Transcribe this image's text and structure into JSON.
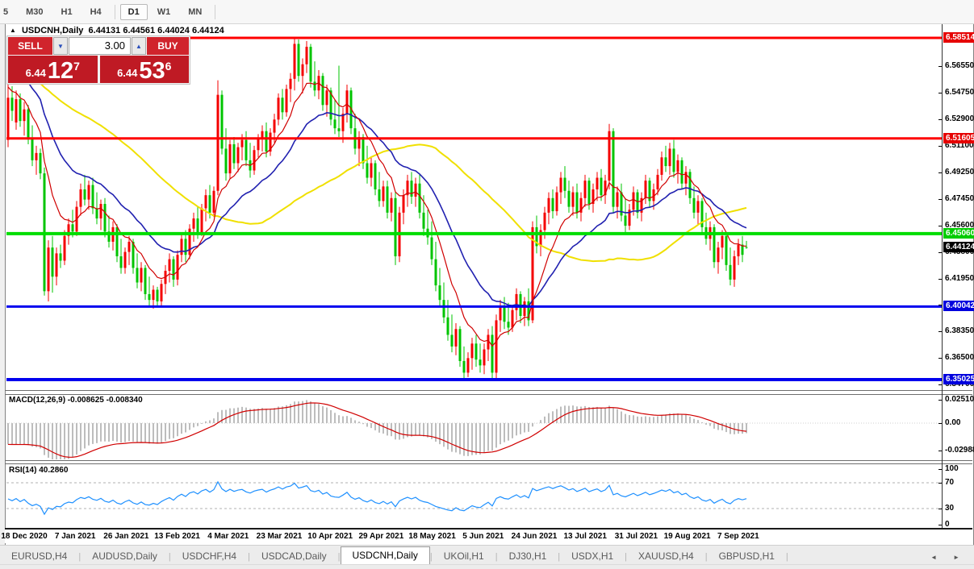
{
  "toolbar": {
    "timeframes": [
      "5",
      "M30",
      "H1",
      "H4",
      "D1",
      "W1",
      "MN"
    ],
    "active": "D1"
  },
  "chart": {
    "title": {
      "symbol": "USDCNH,Daily",
      "ohlc": "6.44131 6.44561 6.44024 6.44124"
    },
    "trade_panel": {
      "sell_label": "SELL",
      "buy_label": "BUY",
      "volume": "3.00",
      "bid": {
        "prefix": "6.44",
        "big": "12",
        "sup": "7"
      },
      "ask": {
        "prefix": "6.44",
        "big": "53",
        "sup": "6"
      }
    },
    "colors": {
      "bull": "#f40000",
      "bear": "#00c400",
      "level_red": "#ff0000",
      "level_green": "#00dd00",
      "level_blue": "#0000ee",
      "ma_fast": "#d00000",
      "ma_mid": "#2121b0",
      "ma_slow": "#f0e000",
      "macd_hist": "#bdbdbd",
      "macd_signal": "#d00000",
      "rsi_line": "#1e90ff"
    },
    "levels": [
      {
        "label": "6.58514",
        "value": 6.58514,
        "line": "#ff0000",
        "width": 3,
        "badge_bg": "#e60000"
      },
      {
        "label": "6.51605",
        "value": 6.51605,
        "line": "#ff0000",
        "width": 3,
        "badge_bg": "#e60000"
      },
      {
        "label": "6.45060",
        "value": 6.4506,
        "line": "#00dd00",
        "width": 4,
        "badge_bg": "#00cc00"
      },
      {
        "label": "6.40042",
        "value": 6.40042,
        "line": "#0000ee",
        "width": 3,
        "badge_bg": "#0000dd"
      },
      {
        "label": "6.35025",
        "value": 6.35025,
        "line": "#0000ee",
        "width": 4,
        "badge_bg": "#0000dd"
      }
    ],
    "current_price_badge": {
      "label": "6.44124",
      "value": 6.44124,
      "badge_bg": "#000000"
    },
    "price_ticks": [
      "6.56550",
      "6.54750",
      "6.52900",
      "6.51100",
      "6.49250",
      "6.47450",
      "6.45600",
      "6.43800",
      "6.41950",
      "6.40150",
      "6.38350",
      "6.36500",
      "6.34700"
    ]
  },
  "macd_panel": {
    "label": "MACD(12,26,9) -0.008625 -0.008340",
    "ticks": [
      "0.025108",
      "0.00",
      "-0.02988"
    ]
  },
  "rsi_panel": {
    "label": "RSI(14) 40.2860",
    "ticks": [
      "100",
      "70",
      "30",
      "0"
    ]
  },
  "date_axis": {
    "labels": [
      "18 Dec 2020",
      "7 Jan 2021",
      "26 Jan 2021",
      "13 Feb 2021",
      "4 Mar 2021",
      "23 Mar 2021",
      "10 Apr 2021",
      "29 Apr 2021",
      "18 May 2021",
      "5 Jun 2021",
      "24 Jun 2021",
      "13 Jul 2021",
      "31 Jul 2021",
      "19 Aug 2021",
      "7 Sep 2021"
    ]
  },
  "tabs": {
    "items": [
      "EURUSD,H4",
      "AUDUSD,Daily",
      "USDCHF,H4",
      "USDCAD,Daily",
      "USDCNH,Daily",
      "UKOil,H1",
      "DJ30,H1",
      "USDX,H1",
      "XAUUSD,H4",
      "GBPUSD,H1"
    ],
    "active": "USDCNH,Daily",
    "scroll_left_icon": "◄",
    "scroll_right_icon": "►"
  },
  "chart_data": {
    "type": "candlestick",
    "symbol": "USDCNH",
    "period": "Daily",
    "note": "OHLC per bar, red=up green=down (CN convention)",
    "candles": [
      [
        6.515,
        6.554,
        6.51,
        6.544
      ],
      [
        6.544,
        6.552,
        6.528,
        6.535
      ],
      [
        6.527,
        6.549,
        6.522,
        6.543
      ],
      [
        6.543,
        6.547,
        6.524,
        6.528
      ],
      [
        6.528,
        6.541,
        6.518,
        6.536
      ],
      [
        6.536,
        6.539,
        6.512,
        6.516
      ],
      [
        6.516,
        6.525,
        6.497,
        6.501
      ],
      [
        6.501,
        6.511,
        6.491,
        6.506
      ],
      [
        6.506,
        6.509,
        6.488,
        6.492
      ],
      [
        6.492,
        6.496,
        6.408,
        6.411
      ],
      [
        6.411,
        6.446,
        6.404,
        6.441
      ],
      [
        6.441,
        6.449,
        6.41,
        6.421
      ],
      [
        6.421,
        6.441,
        6.415,
        6.437
      ],
      [
        6.437,
        6.443,
        6.427,
        6.432
      ],
      [
        6.432,
        6.453,
        6.429,
        6.449
      ],
      [
        6.449,
        6.461,
        6.443,
        6.457
      ],
      [
        6.457,
        6.467,
        6.448,
        6.452
      ],
      [
        6.452,
        6.473,
        6.449,
        6.469
      ],
      [
        6.469,
        6.485,
        6.463,
        6.481
      ],
      [
        6.481,
        6.491,
        6.47,
        6.474
      ],
      [
        6.474,
        6.487,
        6.467,
        6.484
      ],
      [
        6.484,
        6.489,
        6.464,
        6.468
      ],
      [
        6.468,
        6.479,
        6.457,
        6.461
      ],
      [
        6.461,
        6.474,
        6.453,
        6.471
      ],
      [
        6.471,
        6.475,
        6.448,
        6.452
      ],
      [
        6.452,
        6.463,
        6.441,
        6.445
      ],
      [
        6.445,
        6.459,
        6.439,
        6.455
      ],
      [
        6.455,
        6.457,
        6.431,
        6.435
      ],
      [
        6.435,
        6.447,
        6.423,
        6.427
      ],
      [
        6.427,
        6.441,
        6.423,
        6.438
      ],
      [
        6.438,
        6.449,
        6.429,
        6.445
      ],
      [
        6.445,
        6.447,
        6.423,
        6.427
      ],
      [
        6.427,
        6.437,
        6.413,
        6.417
      ],
      [
        6.417,
        6.431,
        6.411,
        6.427
      ],
      [
        6.427,
        6.429,
        6.405,
        6.409
      ],
      [
        6.409,
        6.421,
        6.401,
        6.405
      ],
      [
        6.405,
        6.415,
        6.399,
        6.412
      ],
      [
        6.412,
        6.414,
        6.4,
        6.404
      ],
      [
        6.404,
        6.419,
        6.401,
        6.416
      ],
      [
        6.416,
        6.429,
        6.409,
        6.425
      ],
      [
        6.425,
        6.437,
        6.417,
        6.433
      ],
      [
        6.433,
        6.435,
        6.414,
        6.419
      ],
      [
        6.419,
        6.439,
        6.415,
        6.436
      ],
      [
        6.436,
        6.451,
        6.431,
        6.447
      ],
      [
        6.447,
        6.453,
        6.431,
        6.436
      ],
      [
        6.436,
        6.457,
        6.433,
        6.454
      ],
      [
        6.454,
        6.465,
        6.445,
        6.461
      ],
      [
        6.461,
        6.469,
        6.447,
        6.451
      ],
      [
        6.451,
        6.471,
        6.449,
        6.468
      ],
      [
        6.468,
        6.481,
        6.459,
        6.477
      ],
      [
        6.477,
        6.484,
        6.461,
        6.465
      ],
      [
        6.465,
        6.483,
        6.462,
        6.48
      ],
      [
        6.48,
        6.556,
        6.477,
        6.546
      ],
      [
        6.546,
        6.549,
        6.505,
        6.509
      ],
      [
        6.509,
        6.523,
        6.487,
        6.492
      ],
      [
        6.492,
        6.515,
        6.488,
        6.512
      ],
      [
        6.512,
        6.517,
        6.495,
        6.499
      ],
      [
        6.499,
        6.513,
        6.493,
        6.51
      ],
      [
        6.51,
        6.519,
        6.501,
        6.515
      ],
      [
        6.515,
        6.521,
        6.497,
        6.501
      ],
      [
        6.501,
        6.513,
        6.489,
        6.494
      ],
      [
        6.494,
        6.511,
        6.491,
        6.508
      ],
      [
        6.508,
        6.519,
        6.503,
        6.516
      ],
      [
        6.516,
        6.525,
        6.507,
        6.521
      ],
      [
        6.521,
        6.527,
        6.503,
        6.507
      ],
      [
        6.507,
        6.523,
        6.504,
        6.52
      ],
      [
        6.52,
        6.533,
        6.513,
        6.529
      ],
      [
        6.529,
        6.547,
        6.525,
        6.544
      ],
      [
        6.544,
        6.55,
        6.529,
        6.534
      ],
      [
        6.534,
        6.553,
        6.531,
        6.55
      ],
      [
        6.55,
        6.561,
        6.541,
        6.557
      ],
      [
        6.557,
        6.585,
        6.549,
        6.581
      ],
      [
        6.581,
        6.584,
        6.555,
        6.559
      ],
      [
        6.559,
        6.571,
        6.547,
        6.567
      ],
      [
        6.567,
        6.583,
        6.561,
        6.579
      ],
      [
        6.579,
        6.581,
        6.551,
        6.555
      ],
      [
        6.555,
        6.569,
        6.545,
        6.549
      ],
      [
        6.549,
        6.563,
        6.543,
        6.559
      ],
      [
        6.559,
        6.561,
        6.535,
        6.539
      ],
      [
        6.539,
        6.553,
        6.531,
        6.549
      ],
      [
        6.549,
        6.551,
        6.525,
        6.529
      ],
      [
        6.529,
        6.543,
        6.519,
        6.523
      ],
      [
        6.523,
        6.566,
        6.517,
        6.521
      ],
      [
        6.521,
        6.537,
        6.513,
        6.533
      ],
      [
        6.533,
        6.553,
        6.527,
        6.549
      ],
      [
        6.549,
        6.551,
        6.519,
        6.523
      ],
      [
        6.523,
        6.533,
        6.505,
        6.509
      ],
      [
        6.509,
        6.521,
        6.497,
        6.517
      ],
      [
        6.517,
        6.519,
        6.495,
        6.499
      ],
      [
        6.499,
        6.511,
        6.485,
        6.489
      ],
      [
        6.489,
        6.503,
        6.483,
        6.499
      ],
      [
        6.499,
        6.501,
        6.477,
        6.481
      ],
      [
        6.481,
        6.493,
        6.469,
        6.473
      ],
      [
        6.473,
        6.487,
        6.469,
        6.483
      ],
      [
        6.483,
        6.487,
        6.461,
        6.465
      ],
      [
        6.465,
        6.479,
        6.459,
        6.475
      ],
      [
        6.475,
        6.479,
        6.429,
        6.435
      ],
      [
        6.435,
        6.469,
        6.431,
        6.465
      ],
      [
        6.465,
        6.481,
        6.457,
        6.477
      ],
      [
        6.477,
        6.491,
        6.469,
        6.487
      ],
      [
        6.487,
        6.493,
        6.471,
        6.476
      ],
      [
        6.476,
        6.489,
        6.469,
        6.485
      ],
      [
        6.485,
        6.491,
        6.461,
        6.465
      ],
      [
        6.465,
        6.477,
        6.449,
        6.454
      ],
      [
        6.454,
        6.467,
        6.443,
        6.448
      ],
      [
        6.448,
        6.459,
        6.429,
        6.433
      ],
      [
        6.433,
        6.445,
        6.411,
        6.415
      ],
      [
        6.415,
        6.427,
        6.401,
        6.405
      ],
      [
        6.405,
        6.417,
        6.389,
        6.393
      ],
      [
        6.393,
        6.405,
        6.377,
        6.381
      ],
      [
        6.381,
        6.395,
        6.369,
        6.373
      ],
      [
        6.373,
        6.389,
        6.367,
        6.385
      ],
      [
        6.385,
        6.387,
        6.359,
        6.363
      ],
      [
        6.363,
        6.373,
        6.351,
        6.355
      ],
      [
        6.355,
        6.369,
        6.352,
        6.365
      ],
      [
        6.365,
        6.379,
        6.357,
        6.375
      ],
      [
        6.375,
        6.381,
        6.359,
        6.364
      ],
      [
        6.364,
        6.375,
        6.355,
        6.36
      ],
      [
        6.36,
        6.375,
        6.354,
        6.371
      ],
      [
        6.371,
        6.385,
        6.363,
        6.381
      ],
      [
        6.381,
        6.387,
        6.35,
        6.355
      ],
      [
        6.355,
        6.395,
        6.351,
        6.391
      ],
      [
        6.391,
        6.405,
        6.383,
        6.401
      ],
      [
        6.401,
        6.407,
        6.385,
        6.39
      ],
      [
        6.39,
        6.403,
        6.381,
        6.386
      ],
      [
        6.386,
        6.401,
        6.383,
        6.398
      ],
      [
        6.398,
        6.413,
        6.391,
        6.409
      ],
      [
        6.409,
        6.411,
        6.389,
        6.394
      ],
      [
        6.394,
        6.407,
        6.387,
        6.404
      ],
      [
        6.404,
        6.413,
        6.387,
        6.391
      ],
      [
        6.391,
        6.459,
        6.389,
        6.455
      ],
      [
        6.455,
        6.463,
        6.437,
        6.442
      ],
      [
        6.442,
        6.457,
        6.435,
        6.453
      ],
      [
        6.453,
        6.469,
        6.447,
        6.465
      ],
      [
        6.465,
        6.479,
        6.457,
        6.475
      ],
      [
        6.475,
        6.481,
        6.461,
        6.466
      ],
      [
        6.466,
        6.483,
        6.463,
        6.479
      ],
      [
        6.479,
        6.493,
        6.471,
        6.489
      ],
      [
        6.489,
        6.497,
        6.475,
        6.48
      ],
      [
        6.48,
        6.487,
        6.465,
        6.469
      ],
      [
        6.469,
        6.483,
        6.463,
        6.479
      ],
      [
        6.479,
        6.485,
        6.461,
        6.465
      ],
      [
        6.465,
        6.479,
        6.459,
        6.475
      ],
      [
        6.475,
        6.491,
        6.469,
        6.487
      ],
      [
        6.487,
        6.489,
        6.467,
        6.471
      ],
      [
        6.471,
        6.485,
        6.465,
        6.481
      ],
      [
        6.481,
        6.493,
        6.473,
        6.489
      ],
      [
        6.489,
        6.495,
        6.473,
        6.477
      ],
      [
        6.477,
        6.491,
        6.471,
        6.487
      ],
      [
        6.487,
        6.526,
        6.481,
        6.521
      ],
      [
        6.521,
        6.523,
        6.465,
        6.469
      ],
      [
        6.469,
        6.483,
        6.461,
        6.479
      ],
      [
        6.479,
        6.485,
        6.459,
        6.463
      ],
      [
        6.463,
        6.475,
        6.451,
        6.456
      ],
      [
        6.456,
        6.471,
        6.453,
        6.467
      ],
      [
        6.467,
        6.483,
        6.463,
        6.479
      ],
      [
        6.479,
        6.481,
        6.461,
        6.465
      ],
      [
        6.465,
        6.479,
        6.459,
        6.475
      ],
      [
        6.475,
        6.491,
        6.471,
        6.487
      ],
      [
        6.487,
        6.489,
        6.469,
        6.473
      ],
      [
        6.473,
        6.485,
        6.467,
        6.481
      ],
      [
        6.481,
        6.495,
        6.477,
        6.491
      ],
      [
        6.491,
        6.507,
        6.487,
        6.503
      ],
      [
        6.503,
        6.511,
        6.493,
        6.497
      ],
      [
        6.497,
        6.513,
        6.491,
        6.509
      ],
      [
        6.509,
        6.515,
        6.489,
        6.493
      ],
      [
        6.493,
        6.505,
        6.485,
        6.501
      ],
      [
        6.501,
        6.503,
        6.481,
        6.485
      ],
      [
        6.485,
        6.497,
        6.477,
        6.493
      ],
      [
        6.493,
        6.495,
        6.471,
        6.475
      ],
      [
        6.475,
        6.483,
        6.461,
        6.465
      ],
      [
        6.465,
        6.477,
        6.457,
        6.473
      ],
      [
        6.473,
        6.475,
        6.451,
        6.455
      ],
      [
        6.455,
        6.465,
        6.443,
        6.447
      ],
      [
        6.447,
        6.459,
        6.439,
        6.455
      ],
      [
        6.455,
        6.457,
        6.427,
        6.431
      ],
      [
        6.431,
        6.445,
        6.423,
        6.441
      ],
      [
        6.441,
        6.453,
        6.433,
        6.449
      ],
      [
        6.449,
        6.451,
        6.425,
        6.429
      ],
      [
        6.429,
        6.441,
        6.415,
        6.419
      ],
      [
        6.419,
        6.439,
        6.414,
        6.435
      ],
      [
        6.435,
        6.447,
        6.429,
        6.443
      ],
      [
        6.443,
        6.449,
        6.431,
        6.436
      ],
      [
        6.4413,
        6.4456,
        6.4402,
        6.4412
      ]
    ]
  }
}
